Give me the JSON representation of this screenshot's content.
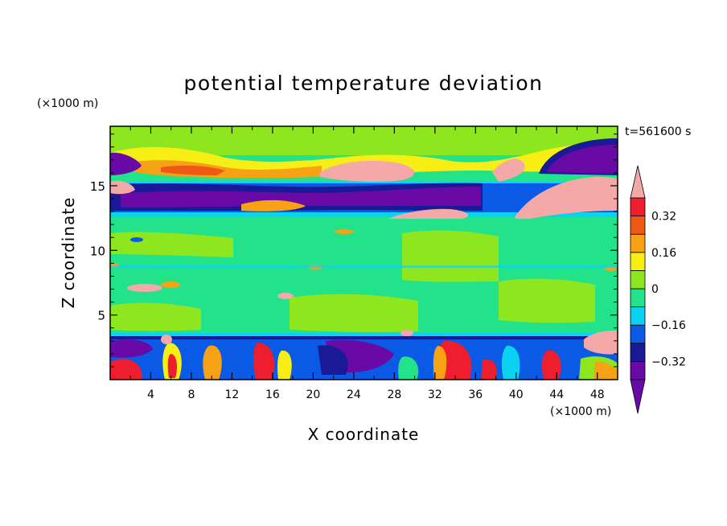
{
  "chart_data": {
    "type": "heatmap",
    "title": "potential temperature deviation",
    "xlabel": "X coordinate",
    "ylabel": "Z coordinate",
    "x_unit": "(×1000 m)",
    "y_unit": "(×1000 m)",
    "time_label": "t=561600 s",
    "xlim": [
      0,
      50
    ],
    "ylim": [
      0,
      19.6
    ],
    "x_ticks": [
      4,
      8,
      12,
      16,
      20,
      24,
      28,
      32,
      36,
      40,
      44,
      48
    ],
    "x_tick_labels": [
      "4",
      "8",
      "12",
      "16",
      "20",
      "24",
      "28",
      "32",
      "36",
      "40",
      "44",
      "48"
    ],
    "y_ticks": [
      5,
      10,
      15
    ],
    "y_tick_labels": [
      "5",
      "10",
      "15"
    ],
    "colorbar": {
      "levels": [
        -0.4,
        -0.32,
        -0.24,
        -0.16,
        -0.08,
        0,
        0.08,
        0.16,
        0.24,
        0.32,
        0.4
      ],
      "tick_values": [
        0.32,
        0.16,
        0,
        -0.16,
        -0.32
      ],
      "tick_labels": [
        "0.32",
        "0.16",
        "0",
        "−0.16",
        "−0.32"
      ],
      "colors": [
        "#6a0aa6",
        "#1a1a96",
        "#0a5ae6",
        "#0ad2f0",
        "#22e28a",
        "#8ee61e",
        "#f6ee14",
        "#f6a214",
        "#ee5a14",
        "#ee1e2e",
        "#f5a8a8"
      ],
      "extend": "both"
    }
  }
}
